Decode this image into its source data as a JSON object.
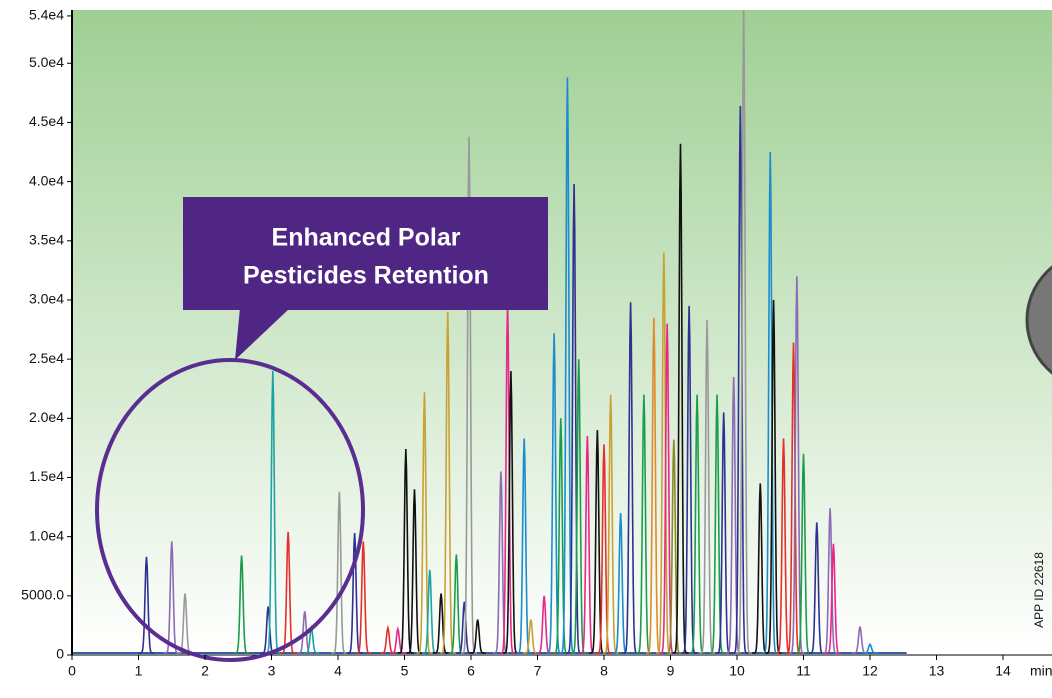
{
  "chart_data": {
    "type": "chromatogram",
    "xlim": [
      0,
      14.7
    ],
    "ylim": [
      0,
      54500
    ],
    "xticks": [
      0,
      1,
      2,
      3,
      4,
      5,
      6,
      7,
      8,
      9,
      10,
      11,
      12,
      13,
      14
    ],
    "yticks": [
      0,
      {
        "value": 5000,
        "label": "5000.0"
      },
      {
        "value": 10000,
        "label": "1.0e4"
      },
      {
        "value": 15000,
        "label": "1.5e4"
      },
      {
        "value": 20000,
        "label": "2.0e4"
      },
      {
        "value": 25000,
        "label": "2.5e4"
      },
      {
        "value": 30000,
        "label": "3.0e4"
      },
      {
        "value": 35000,
        "label": "3.5e4"
      },
      {
        "value": 40000,
        "label": "4.0e4"
      },
      {
        "value": 45000,
        "label": "4.5e4"
      },
      {
        "value": 50000,
        "label": "5.0e4"
      },
      {
        "value": 54000,
        "label": "5.4e4"
      }
    ],
    "x_unit": "min",
    "trace_end": 12.55,
    "annotation": [
      "Enhanced Polar",
      "Pesticides Retention"
    ],
    "side_label": "APP ID 22618",
    "peaks": [
      {
        "x": 1.12,
        "y": 8300,
        "color": "#2e3192"
      },
      {
        "x": 1.5,
        "y": 9600,
        "color": "#8e6bb5"
      },
      {
        "x": 1.7,
        "y": 5200,
        "color": "#999999"
      },
      {
        "x": 2.55,
        "y": 8400,
        "color": "#1b9e4b"
      },
      {
        "x": 2.95,
        "y": 4100,
        "color": "#2e3192"
      },
      {
        "x": 3.02,
        "y": 24000,
        "color": "#1ca3a3"
      },
      {
        "x": 3.25,
        "y": 10400,
        "color": "#e5302a"
      },
      {
        "x": 3.5,
        "y": 3700,
        "color": "#8e6bb5"
      },
      {
        "x": 3.6,
        "y": 2300,
        "color": "#1ca3a3"
      },
      {
        "x": 4.02,
        "y": 13800,
        "color": "#999999"
      },
      {
        "x": 4.25,
        "y": 10300,
        "color": "#2e3192"
      },
      {
        "x": 4.38,
        "y": 9600,
        "color": "#e5302a"
      },
      {
        "x": 4.75,
        "y": 2300,
        "color": "#e5302a"
      },
      {
        "x": 4.9,
        "y": 2200,
        "color": "#e6288a"
      },
      {
        "x": 5.02,
        "y": 17400,
        "color": "#111111"
      },
      {
        "x": 5.15,
        "y": 14000,
        "color": "#111111"
      },
      {
        "x": 5.3,
        "y": 22200,
        "color": "#c8a235"
      },
      {
        "x": 5.38,
        "y": 7200,
        "color": "#1ca3a3"
      },
      {
        "x": 5.55,
        "y": 5200,
        "color": "#111111"
      },
      {
        "x": 5.65,
        "y": 29000,
        "color": "#c8a235"
      },
      {
        "x": 5.78,
        "y": 8500,
        "color": "#1b9e4b"
      },
      {
        "x": 5.9,
        "y": 4500,
        "color": "#2e3192"
      },
      {
        "x": 5.97,
        "y": 43800,
        "color": "#999999"
      },
      {
        "x": 6.1,
        "y": 3000,
        "color": "#111111"
      },
      {
        "x": 6.45,
        "y": 15500,
        "color": "#8e6bb5"
      },
      {
        "x": 6.55,
        "y": 29800,
        "color": "#e6288a"
      },
      {
        "x": 6.6,
        "y": 24000,
        "color": "#111111"
      },
      {
        "x": 6.8,
        "y": 18300,
        "color": "#1b8ccc"
      },
      {
        "x": 6.9,
        "y": 3000,
        "color": "#c8a235"
      },
      {
        "x": 7.1,
        "y": 5000,
        "color": "#e6288a"
      },
      {
        "x": 7.25,
        "y": 27200,
        "color": "#1b8ccc"
      },
      {
        "x": 7.35,
        "y": 20000,
        "color": "#1b9e4b"
      },
      {
        "x": 7.45,
        "y": 48800,
        "color": "#1b8ccc"
      },
      {
        "x": 7.55,
        "y": 39800,
        "color": "#2e3192"
      },
      {
        "x": 7.62,
        "y": 25000,
        "color": "#1b9e4b"
      },
      {
        "x": 7.75,
        "y": 18500,
        "color": "#e6288a"
      },
      {
        "x": 7.9,
        "y": 19000,
        "color": "#111111"
      },
      {
        "x": 8.0,
        "y": 17800,
        "color": "#e5302a"
      },
      {
        "x": 8.1,
        "y": 22000,
        "color": "#c8a235"
      },
      {
        "x": 8.25,
        "y": 12000,
        "color": "#1b8ccc"
      },
      {
        "x": 8.4,
        "y": 29800,
        "color": "#2e3192"
      },
      {
        "x": 8.6,
        "y": 22000,
        "color": "#1b9e4b"
      },
      {
        "x": 8.75,
        "y": 28500,
        "color": "#e08a2b"
      },
      {
        "x": 8.9,
        "y": 34000,
        "color": "#c8a235"
      },
      {
        "x": 8.95,
        "y": 28000,
        "color": "#e6288a"
      },
      {
        "x": 9.05,
        "y": 18200,
        "color": "#8a8a2a"
      },
      {
        "x": 9.15,
        "y": 43200,
        "color": "#111111"
      },
      {
        "x": 9.28,
        "y": 29500,
        "color": "#2e3192"
      },
      {
        "x": 9.4,
        "y": 22000,
        "color": "#1b9e4b"
      },
      {
        "x": 9.55,
        "y": 28300,
        "color": "#999999"
      },
      {
        "x": 9.7,
        "y": 22000,
        "color": "#1b9e4b"
      },
      {
        "x": 9.8,
        "y": 20500,
        "color": "#2e3192"
      },
      {
        "x": 9.95,
        "y": 23500,
        "color": "#8e6bb5"
      },
      {
        "x": 10.05,
        "y": 46400,
        "color": "#2e3192"
      },
      {
        "x": 10.1,
        "y": 54500,
        "color": "#999999"
      },
      {
        "x": 10.35,
        "y": 14500,
        "color": "#111111"
      },
      {
        "x": 10.5,
        "y": 42500,
        "color": "#1b8ccc"
      },
      {
        "x": 10.55,
        "y": 30000,
        "color": "#111111"
      },
      {
        "x": 10.7,
        "y": 18300,
        "color": "#e5302a"
      },
      {
        "x": 10.85,
        "y": 26400,
        "color": "#e5302a"
      },
      {
        "x": 10.9,
        "y": 32000,
        "color": "#8e6bb5"
      },
      {
        "x": 11.0,
        "y": 17000,
        "color": "#1b9e4b"
      },
      {
        "x": 11.2,
        "y": 11200,
        "color": "#2e3192"
      },
      {
        "x": 11.4,
        "y": 12400,
        "color": "#8e6bb5"
      },
      {
        "x": 11.45,
        "y": 9400,
        "color": "#e6288a"
      },
      {
        "x": 11.85,
        "y": 2400,
        "color": "#8e6bb5"
      },
      {
        "x": 12.0,
        "y": 900,
        "color": "#1b8ccc"
      }
    ]
  }
}
